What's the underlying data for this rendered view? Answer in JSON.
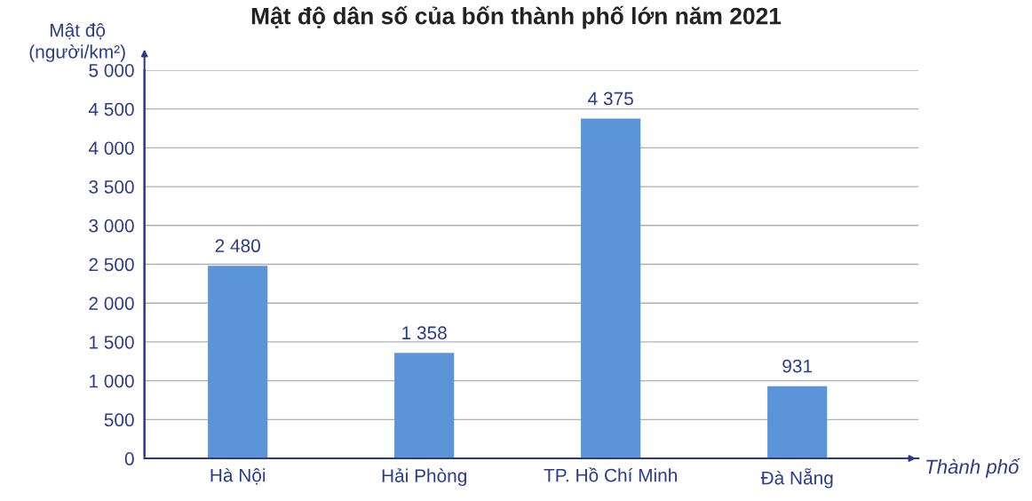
{
  "chart_data": {
    "type": "bar",
    "title": "Mật độ dân số của bốn thành phố lớn năm 2021",
    "ylabel": "Mật độ\n(người/km²)",
    "xlabel": "Thành phố",
    "categories": [
      "Hà Nội",
      "Hải Phòng",
      "TP. Hồ Chí Minh",
      "Đà Nẵng"
    ],
    "values": [
      2480,
      1358,
      4375,
      931
    ],
    "value_labels": [
      "2 480",
      "1 358",
      "4 375",
      "931"
    ],
    "color": "#5b95d8",
    "ylim": [
      0,
      5000
    ],
    "yticks": [
      0,
      500,
      {
        "value": 1000,
        "label": "1 000"
      },
      {
        "value": 1500,
        "label": "1 500"
      },
      {
        "value": 2000,
        "label": "2 000"
      },
      {
        "value": 2500,
        "label": "2 500"
      },
      {
        "value": 3000,
        "label": "3 000"
      },
      {
        "value": 3500,
        "label": "3 500"
      },
      {
        "value": 4000,
        "label": "4 000"
      },
      {
        "value": 4500,
        "label": "4 500"
      },
      {
        "value": 5000,
        "label": "5 000"
      }
    ],
    "grid": "y"
  }
}
